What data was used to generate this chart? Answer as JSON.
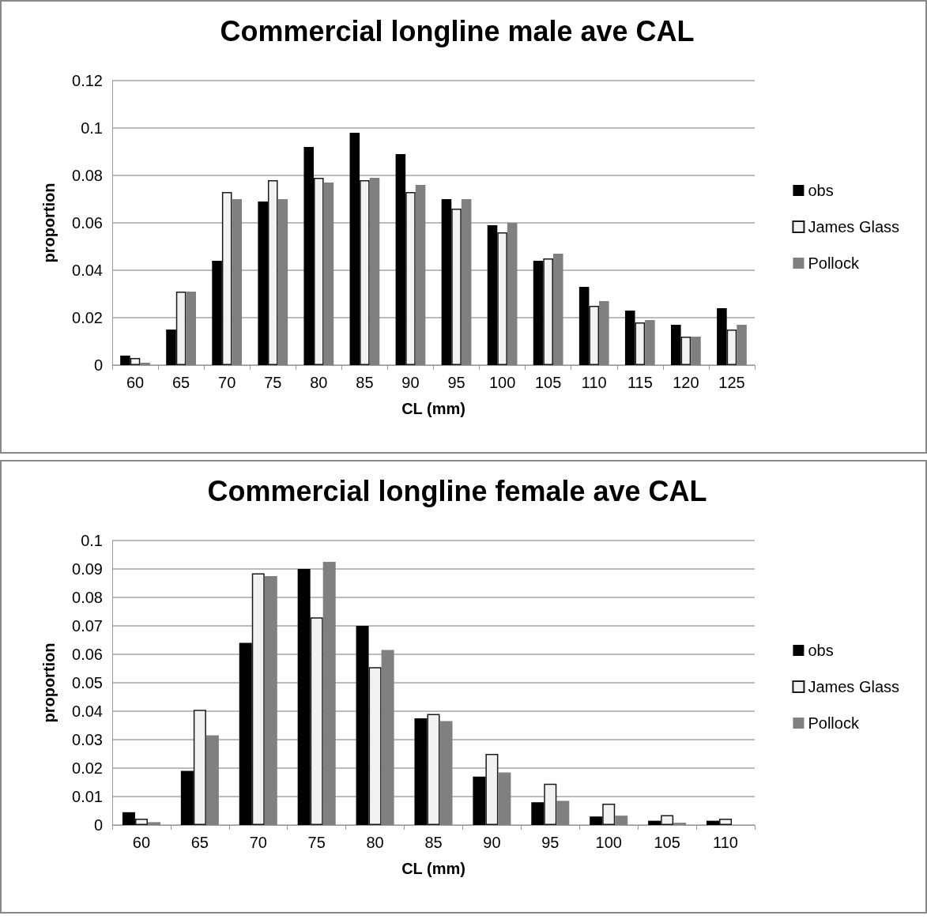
{
  "chart_data": [
    {
      "type": "bar",
      "title": "Commercial longline male ave CAL",
      "xlabel": "CL (mm)",
      "ylabel": "proportion",
      "categories": [
        "60",
        "65",
        "70",
        "75",
        "80",
        "85",
        "90",
        "95",
        "100",
        "105",
        "110",
        "115",
        "120",
        "125"
      ],
      "series": [
        {
          "name": "obs",
          "color": "#000000",
          "values": [
            0.004,
            0.015,
            0.044,
            0.069,
            0.092,
            0.098,
            0.089,
            0.07,
            0.059,
            0.044,
            0.033,
            0.023,
            0.017,
            0.024
          ]
        },
        {
          "name": "James Glass",
          "color": "#f2f2f2",
          "values": [
            0.003,
            0.031,
            0.073,
            0.078,
            0.079,
            0.078,
            0.073,
            0.066,
            0.056,
            0.045,
            0.025,
            0.018,
            0.012,
            0.015
          ]
        },
        {
          "name": "Pollock",
          "color": "#808080",
          "values": [
            0.001,
            0.031,
            0.07,
            0.07,
            0.077,
            0.079,
            0.076,
            0.07,
            0.06,
            0.047,
            0.027,
            0.019,
            0.012,
            0.017
          ]
        }
      ],
      "ylim": [
        0,
        0.12
      ],
      "yticks": [
        0,
        0.02,
        0.04,
        0.06,
        0.08,
        0.1,
        0.12
      ],
      "grid": "y",
      "legend": "right"
    },
    {
      "type": "bar",
      "title": "Commercial longline female ave CAL",
      "xlabel": "CL (mm)",
      "ylabel": "proportion",
      "categories": [
        "60",
        "65",
        "70",
        "75",
        "80",
        "85",
        "90",
        "95",
        "100",
        "105",
        "110"
      ],
      "series": [
        {
          "name": "obs",
          "color": "#000000",
          "values": [
            0.0045,
            0.019,
            0.064,
            0.09,
            0.07,
            0.0375,
            0.017,
            0.008,
            0.003,
            0.0015,
            0.0015
          ]
        },
        {
          "name": "James Glass",
          "color": "#f2f2f2",
          "values": [
            0.0022,
            0.0405,
            0.0885,
            0.073,
            0.0555,
            0.039,
            0.025,
            0.0145,
            0.0075,
            0.0035,
            0.0022
          ]
        },
        {
          "name": "Pollock",
          "color": "#808080",
          "values": [
            0.001,
            0.0315,
            0.0875,
            0.0925,
            0.0615,
            0.0365,
            0.0185,
            0.0085,
            0.0033,
            0.0008,
            0
          ]
        }
      ],
      "ylim": [
        0,
        0.1
      ],
      "yticks": [
        0,
        0.01,
        0.02,
        0.03,
        0.04,
        0.05,
        0.06,
        0.07,
        0.08,
        0.09,
        0.1
      ],
      "grid": "y",
      "legend": "right"
    }
  ]
}
